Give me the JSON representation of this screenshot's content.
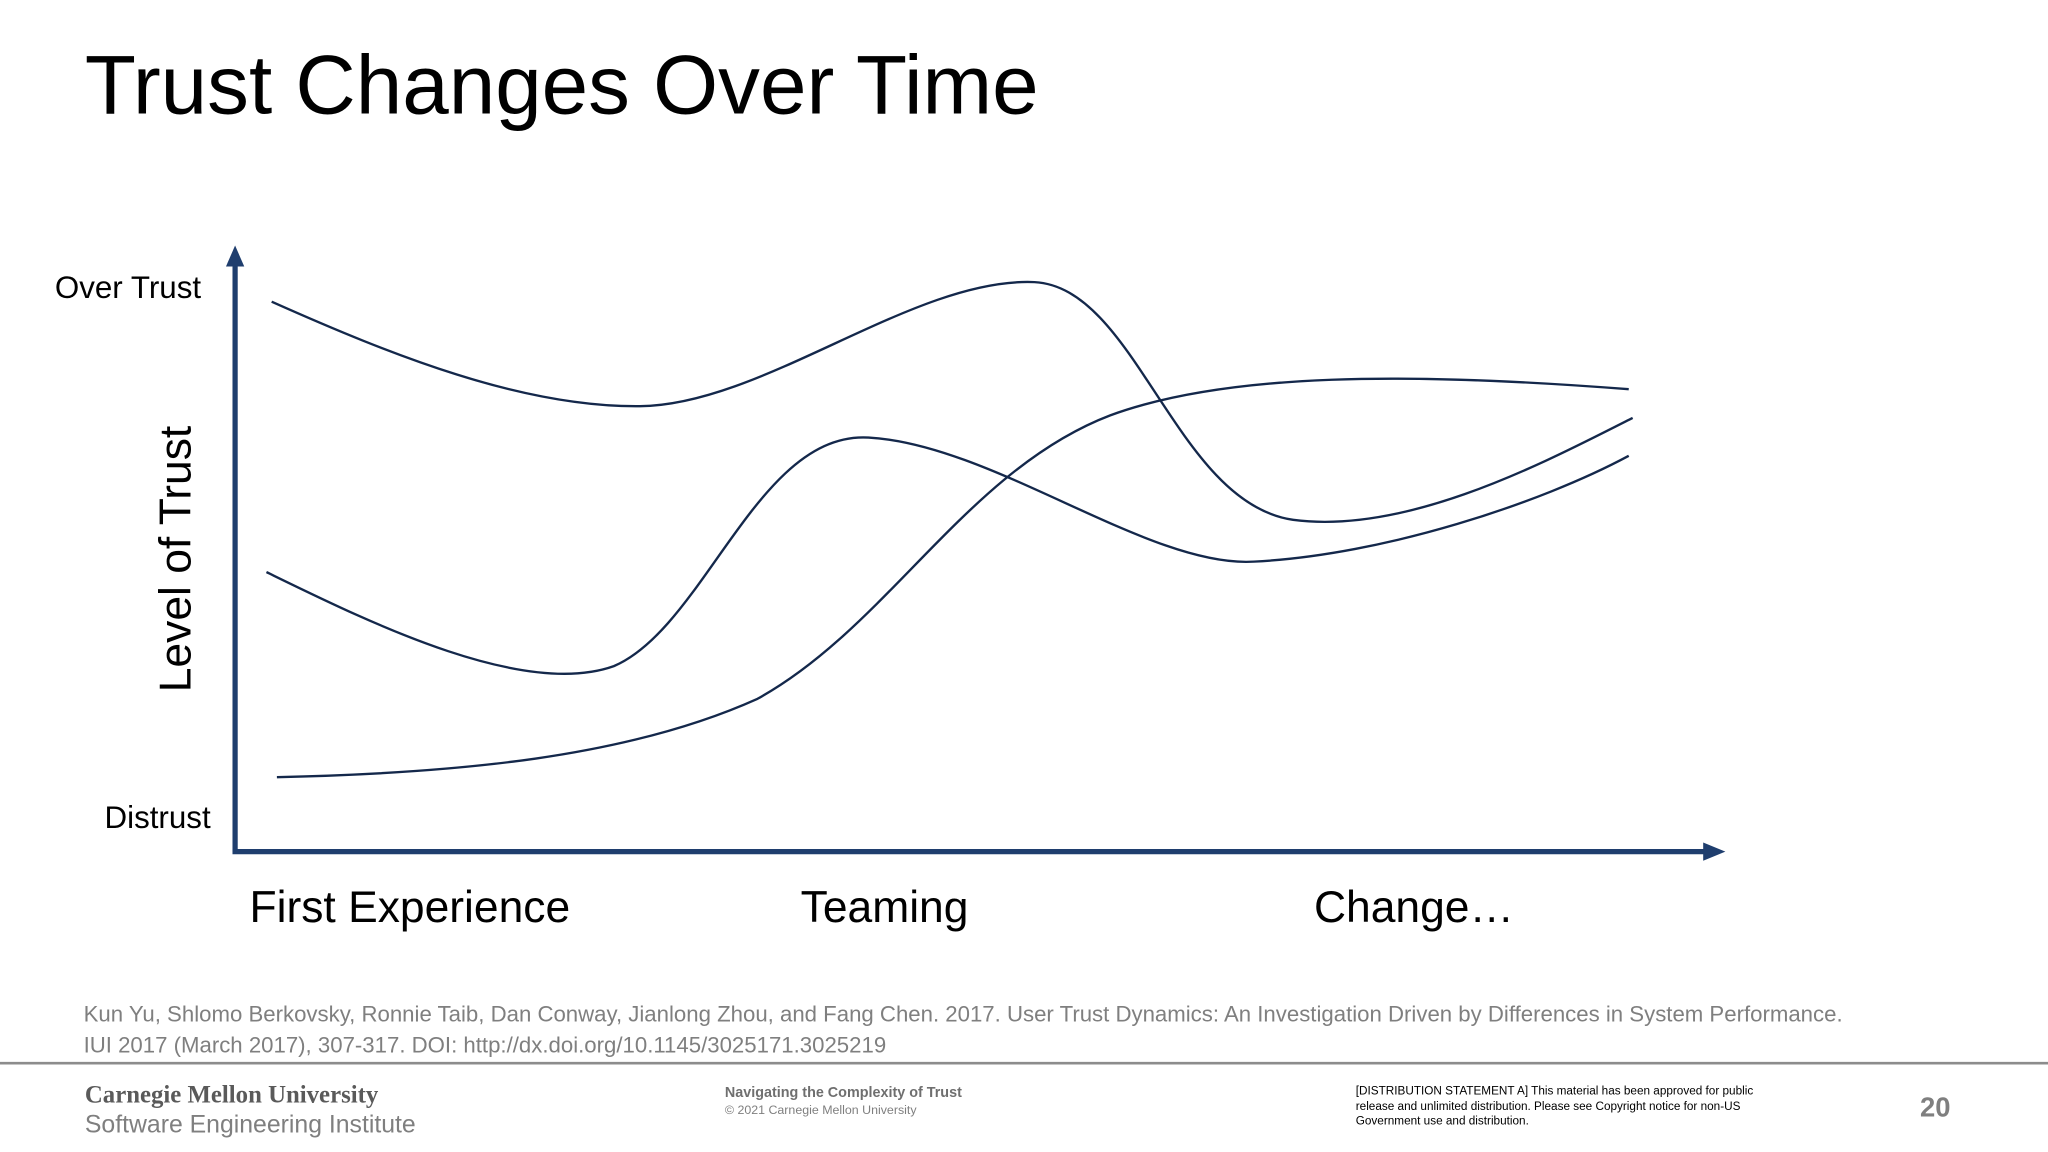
{
  "header": {
    "title": "Trust Changes Over Time"
  },
  "diagram": {
    "y_axis_label": "Level of Trust",
    "y_levels": {
      "top": "Over Trust",
      "bottom": "Distrust"
    },
    "x_labels": [
      "First Experience",
      "Teaming",
      "Change…"
    ]
  },
  "citation": [
    "Kun Yu, Shlomo Berkovsky, Ronnie Taib, Dan Conway, Jianlong Zhou, and Fang Chen. 2017. User Trust Dynamics: An Investigation Driven by Differences in System Performance.",
    "IUI 2017 (March 2017), 307-317. DOI: http://dx.doi.org/10.1145/3025171.3025219"
  ],
  "footer": {
    "university": "Carnegie Mellon University",
    "institute": "Software Engineering Institute",
    "presentation_title": "Navigating the Complexity of Trust",
    "copyright": "© 2021 Carnegie Mellon University",
    "distribution": [
      "[DISTRIBUTION STATEMENT A] This material has been approved for public",
      "release and unlimited distribution.  Please see Copyright notice for non-US",
      "Government use and distribution."
    ],
    "page_number": 20
  }
}
